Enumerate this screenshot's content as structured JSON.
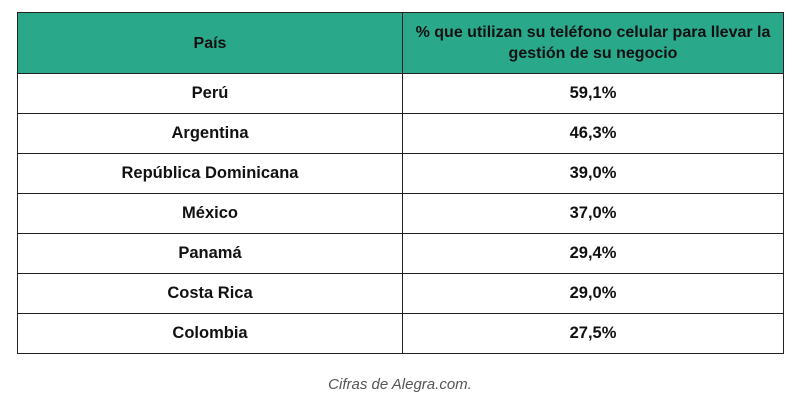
{
  "table": {
    "headers": [
      "País",
      "% que utilizan su teléfono celular para llevar la gestión de su negocio"
    ],
    "rows": [
      {
        "country": "Perú",
        "value": "59,1%"
      },
      {
        "country": "Argentina",
        "value": "46,3%"
      },
      {
        "country": "República Dominicana",
        "value": "39,0%"
      },
      {
        "country": "México",
        "value": "37,0%"
      },
      {
        "country": "Panamá",
        "value": "29,4%"
      },
      {
        "country": "Costa Rica",
        "value": "29,0%"
      },
      {
        "country": "Colombia",
        "value": "27,5%"
      }
    ]
  },
  "caption": "Cifras de Alegra.com.",
  "colors": {
    "header_background": "#2aa88a",
    "border": "#222222",
    "caption_text": "#555555"
  }
}
